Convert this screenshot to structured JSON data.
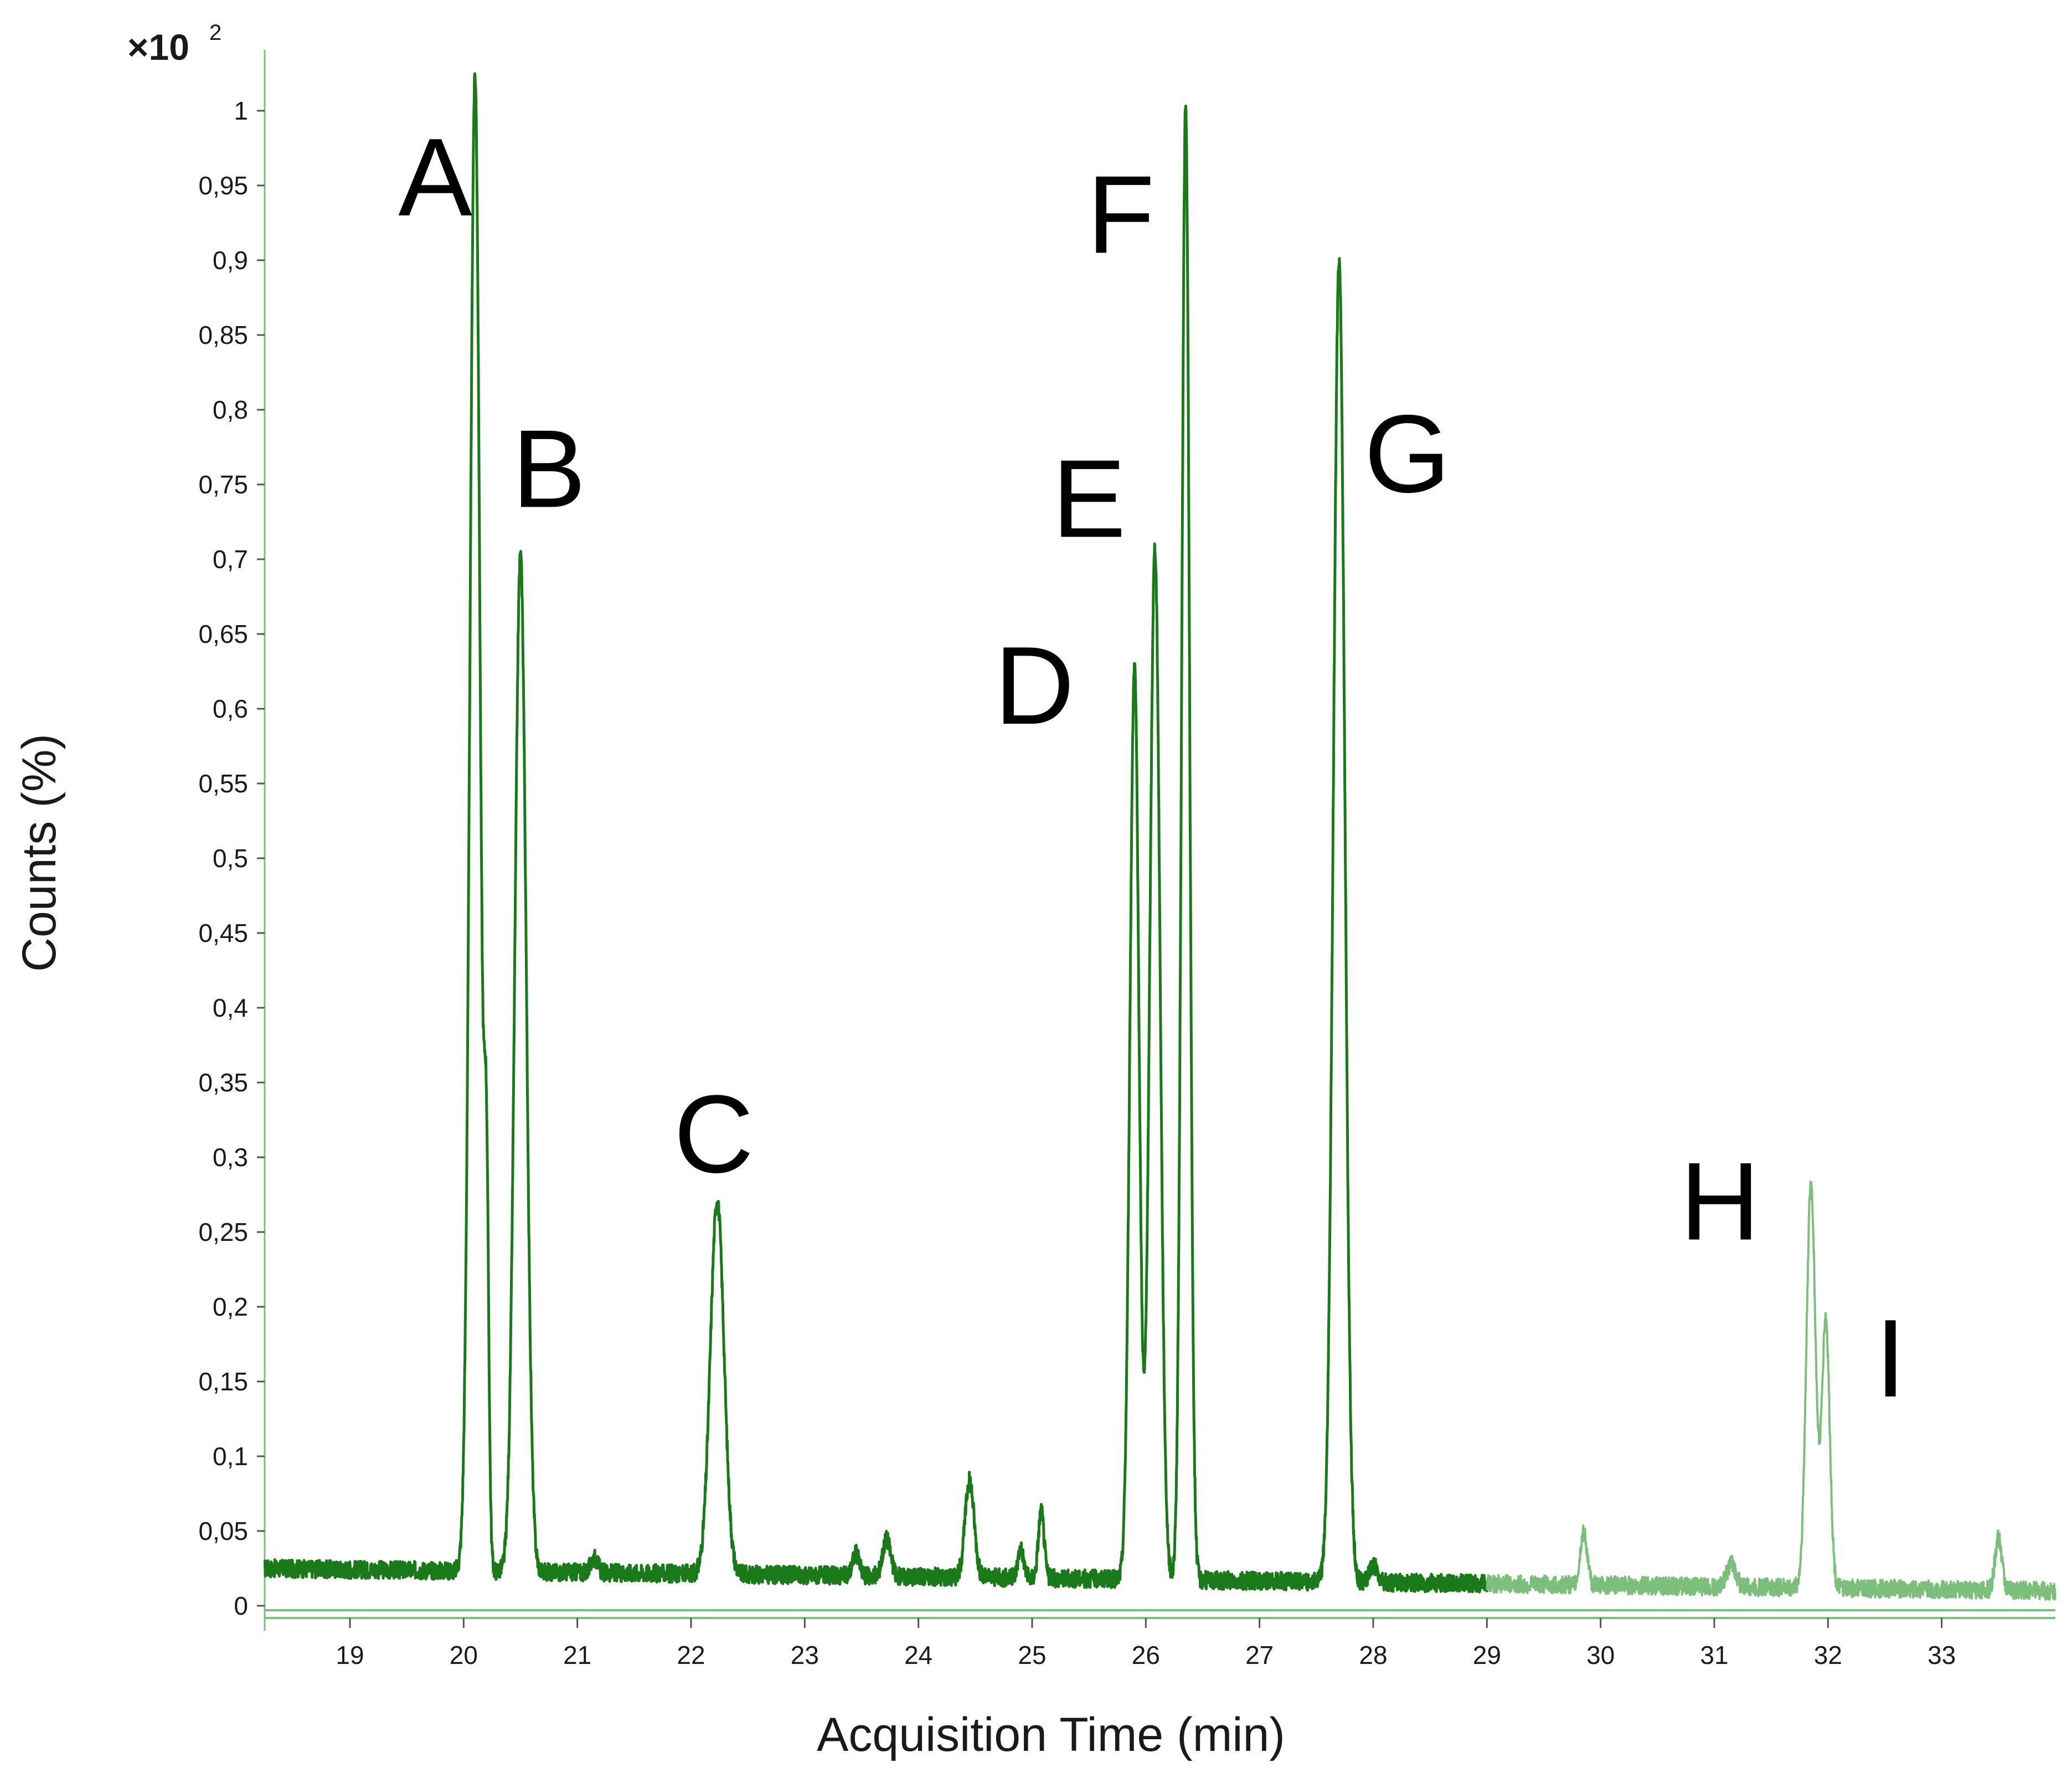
{
  "chart_data": {
    "type": "line",
    "xlabel": "Acquisition Time (min)",
    "ylabel": "Counts (%)",
    "y_scale_label": "×10",
    "y_scale_exponent": "2",
    "xlim": [
      18.25,
      34.0
    ],
    "ylim": [
      0,
      1.0
    ],
    "x_ticks": [
      19,
      20,
      21,
      22,
      23,
      24,
      25,
      26,
      27,
      28,
      29,
      30,
      31,
      32,
      33
    ],
    "x_tick_labels": [
      "19",
      "20",
      "21",
      "22",
      "23",
      "24",
      "25",
      "26",
      "27",
      "28",
      "29",
      "30",
      "31",
      "32",
      "33"
    ],
    "y_ticks": [
      0,
      0.05,
      0.1,
      0.15,
      0.2,
      0.25,
      0.3,
      0.35,
      0.4,
      0.45,
      0.5,
      0.55,
      0.6,
      0.65,
      0.7,
      0.75,
      0.8,
      0.85,
      0.9,
      0.95,
      1
    ],
    "y_tick_labels": [
      "0",
      "0,05",
      "0,1",
      "0,15",
      "0,2",
      "0,25",
      "0,3",
      "0,35",
      "0,4",
      "0,45",
      "0,5",
      "0,55",
      "0,6",
      "0,65",
      "0,7",
      "0,75",
      "0,8",
      "0,85",
      "0,9",
      "0,95",
      "1"
    ],
    "grid": false,
    "line_colors": {
      "dark": "#1a7a1a",
      "light": "#7cbf7c"
    },
    "color_change_x": 29.0,
    "baseline": {
      "start": 0.025,
      "end": 0.01
    },
    "peaks": [
      {
        "x": 20.1,
        "height": 1.0,
        "width": 0.045
      },
      {
        "x": 20.2,
        "height": 0.24,
        "width": 0.02
      },
      {
        "x": 20.5,
        "height": 0.68,
        "width": 0.05
      },
      {
        "x": 21.15,
        "height": 0.01,
        "width": 0.03
      },
      {
        "x": 22.23,
        "height": 0.25,
        "width": 0.06
      },
      {
        "x": 23.45,
        "height": 0.015,
        "width": 0.03
      },
      {
        "x": 23.72,
        "height": 0.025,
        "width": 0.035
      },
      {
        "x": 24.45,
        "height": 0.065,
        "width": 0.04
      },
      {
        "x": 24.9,
        "height": 0.02,
        "width": 0.025
      },
      {
        "x": 25.08,
        "height": 0.045,
        "width": 0.025
      },
      {
        "x": 25.9,
        "height": 0.61,
        "width": 0.04
      },
      {
        "x": 26.08,
        "height": 0.69,
        "width": 0.045
      },
      {
        "x": 26.35,
        "height": 0.985,
        "width": 0.035
      },
      {
        "x": 27.7,
        "height": 0.885,
        "width": 0.05
      },
      {
        "x": 28.0,
        "height": 0.012,
        "width": 0.03
      },
      {
        "x": 29.85,
        "height": 0.035,
        "width": 0.03
      },
      {
        "x": 31.15,
        "height": 0.015,
        "width": 0.04
      },
      {
        "x": 31.85,
        "height": 0.27,
        "width": 0.04
      },
      {
        "x": 31.98,
        "height": 0.18,
        "width": 0.035
      },
      {
        "x": 33.5,
        "height": 0.035,
        "width": 0.03
      }
    ],
    "annotations": [
      {
        "text": "A",
        "x": 19.75,
        "y": 0.93
      },
      {
        "text": "B",
        "x": 20.75,
        "y": 0.735
      },
      {
        "text": "C",
        "x": 22.2,
        "y": 0.29
      },
      {
        "text": "D",
        "x": 25.02,
        "y": 0.59
      },
      {
        "text": "E",
        "x": 25.5,
        "y": 0.715
      },
      {
        "text": "F",
        "x": 25.78,
        "y": 0.905
      },
      {
        "text": "G",
        "x": 28.3,
        "y": 0.745
      },
      {
        "text": "H",
        "x": 31.05,
        "y": 0.245
      },
      {
        "text": "I",
        "x": 32.55,
        "y": 0.14
      }
    ]
  }
}
